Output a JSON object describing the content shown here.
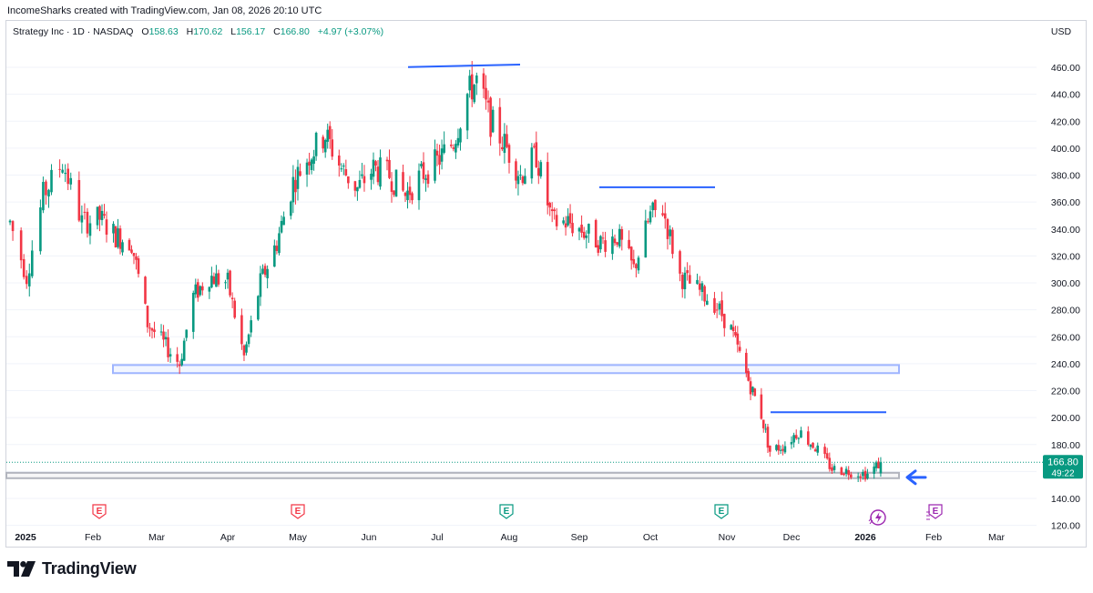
{
  "header": {
    "credit": "IncomeSharks created with TradingView.com, Jan 08, 2026 20:10 UTC"
  },
  "legend": {
    "symbol": "Strategy Inc · 1D · NASDAQ",
    "open_label": "O",
    "open": "158.63",
    "high_label": "H",
    "high": "170.62",
    "low_label": "L",
    "low": "156.17",
    "close_label": "C",
    "close": "166.80",
    "change": "+4.97 (+3.07%)"
  },
  "currency": "USD",
  "price_badge": {
    "price": "166.80",
    "countdown": "49:22"
  },
  "brand": {
    "name": "TradingView"
  },
  "colors": {
    "up": "#089981",
    "down": "#f23645",
    "level": "#2962ff",
    "zone": "#9fb5ff",
    "grey_zone": "#b2b5be",
    "earnings": "#f23645",
    "earnings_green": "#089981",
    "dividend": "#9c27b0"
  },
  "chart_data": {
    "type": "candlestick",
    "title": "Strategy Inc · 1D · NASDAQ",
    "y_axis": {
      "ylim": [
        120,
        470
      ],
      "ticks": [
        120,
        140,
        160,
        180,
        200,
        220,
        240,
        260,
        280,
        300,
        320,
        340,
        360,
        380,
        400,
        420,
        440,
        460
      ],
      "tick_labels": [
        "120.00",
        "140.00",
        "160.00",
        "180.00",
        "200.00",
        "220.00",
        "240.00",
        "260.00",
        "280.00",
        "300.00",
        "320.00",
        "340.00",
        "360.00",
        "380.00",
        "400.00",
        "420.00",
        "440.00",
        "460.00"
      ],
      "position": "right"
    },
    "x_axis": {
      "labels": [
        "2025",
        "Feb",
        "Mar",
        "Apr",
        "May",
        "Jun",
        "Jul",
        "Aug",
        "Sep",
        "Oct",
        "Nov",
        "Dec",
        "2026",
        "Feb",
        "Mar"
      ],
      "bold": [
        "2025",
        "2026"
      ]
    },
    "price_path": [
      [
        "2025-01-02",
        345
      ],
      [
        "2025-01-08",
        305
      ],
      [
        "2025-01-14",
        365
      ],
      [
        "2025-01-21",
        390
      ],
      [
        "2025-01-28",
        345
      ],
      [
        "2025-02-04",
        348
      ],
      [
        "2025-02-11",
        335
      ],
      [
        "2025-02-18",
        330
      ],
      [
        "2025-02-25",
        270
      ],
      [
        "2025-03-04",
        255
      ],
      [
        "2025-03-11",
        240
      ],
      [
        "2025-03-17",
        290
      ],
      [
        "2025-03-24",
        305
      ],
      [
        "2025-04-01",
        300
      ],
      [
        "2025-04-08",
        245
      ],
      [
        "2025-04-15",
        300
      ],
      [
        "2025-04-22",
        330
      ],
      [
        "2025-04-29",
        375
      ],
      [
        "2025-05-06",
        395
      ],
      [
        "2025-05-13",
        410
      ],
      [
        "2025-05-20",
        385
      ],
      [
        "2025-05-27",
        370
      ],
      [
        "2025-06-03",
        385
      ],
      [
        "2025-06-10",
        380
      ],
      [
        "2025-06-17",
        365
      ],
      [
        "2025-06-24",
        380
      ],
      [
        "2025-07-01",
        390
      ],
      [
        "2025-07-08",
        405
      ],
      [
        "2025-07-14",
        440
      ],
      [
        "2025-07-18",
        450
      ],
      [
        "2025-07-24",
        420
      ],
      [
        "2025-07-31",
        400
      ],
      [
        "2025-08-06",
        380
      ],
      [
        "2025-08-13",
        395
      ],
      [
        "2025-08-20",
        345
      ],
      [
        "2025-08-27",
        345
      ],
      [
        "2025-09-03",
        338
      ],
      [
        "2025-09-10",
        330
      ],
      [
        "2025-09-17",
        335
      ],
      [
        "2025-09-24",
        310
      ],
      [
        "2025-10-01",
        350
      ],
      [
        "2025-10-06",
        355
      ],
      [
        "2025-10-13",
        305
      ],
      [
        "2025-10-20",
        295
      ],
      [
        "2025-10-27",
        285
      ],
      [
        "2025-11-03",
        265
      ],
      [
        "2025-11-10",
        232
      ],
      [
        "2025-11-17",
        202
      ],
      [
        "2025-11-21",
        175
      ],
      [
        "2025-11-28",
        180
      ],
      [
        "2025-12-04",
        190
      ],
      [
        "2025-12-11",
        178
      ],
      [
        "2025-12-18",
        162
      ],
      [
        "2025-12-26",
        160
      ],
      [
        "2026-01-02",
        158
      ],
      [
        "2026-01-08",
        166.8
      ]
    ],
    "last_candle": {
      "open": 158.63,
      "high": 170.62,
      "low": 156.17,
      "close": 166.8
    },
    "annotations": {
      "resistance_lines": [
        {
          "from": "2025-06-19",
          "to": "2025-07-31",
          "price": 461
        },
        {
          "from": "2025-09-15",
          "to": "2025-10-28",
          "price": 371
        },
        {
          "from": "2025-11-21",
          "to": "2025-12-31",
          "price": 204
        }
      ],
      "support_zones": [
        {
          "from": "2025-02-15",
          "to": "2026-01-15",
          "low": 233,
          "high": 239,
          "color": "blue"
        },
        {
          "from": "2025-01-01",
          "to": "2026-01-15",
          "low": 155,
          "high": 159,
          "color": "grey"
        }
      ],
      "arrow": {
        "date": "2026-01-22",
        "price": 157,
        "direction": "left"
      }
    },
    "events": [
      {
        "label": "E",
        "date": "2025-02-05",
        "kind": "earnings-red"
      },
      {
        "label": "E",
        "date": "2025-05-01",
        "kind": "earnings-red"
      },
      {
        "label": "E",
        "date": "2025-07-31",
        "kind": "earnings-green"
      },
      {
        "label": "E",
        "date": "2025-10-30",
        "kind": "earnings-green"
      },
      {
        "label": "E",
        "date": "2026-02-05",
        "kind": "earnings-upcoming"
      }
    ]
  }
}
